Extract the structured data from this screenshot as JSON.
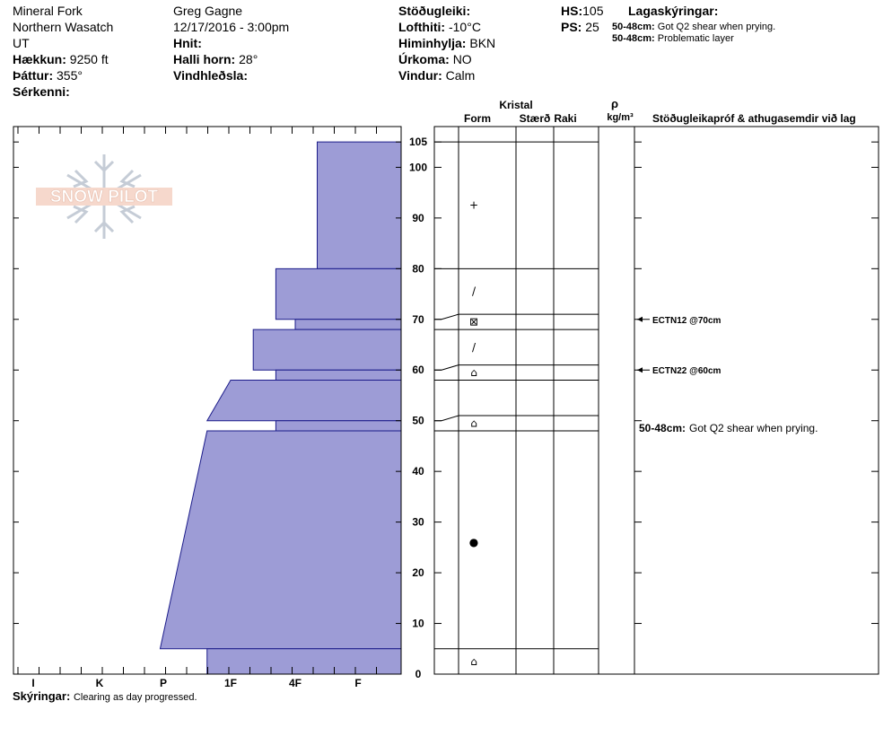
{
  "header": {
    "location": "Mineral Fork",
    "range": "Northern Wasatch",
    "state": "UT",
    "elevation_label": "Hækkun:",
    "elevation_value": "9250 ft",
    "aspect_label": "Þáttur:",
    "aspect_value": "355°",
    "features_label": "Sérkenni:",
    "observer": "Greg Gagne",
    "datetime": "12/17/2016 - 3:00pm",
    "coords_label": "Hnit:",
    "slope_label": "Halli horn:",
    "slope_value": "28°",
    "wind_loading_label": "Vindhleðsla:",
    "stability_label": "Stöðugleiki:",
    "air_temp_label": "Lofthiti:",
    "air_temp_value": "-10°C",
    "sky_label": "Himinhylja:",
    "sky_value": "BKN",
    "precip_label": "Úrkoma:",
    "precip_value": "NO",
    "wind_label": "Vindur:",
    "wind_value": "Calm",
    "hs_label": "HS:",
    "hs_value": "105",
    "ps_label": "PS:",
    "ps_value": "25",
    "layers_label": "Lagaskýringar:",
    "layer_notes": [
      {
        "depth": "50-48cm:",
        "text": "Got Q2 shear when prying."
      },
      {
        "depth": "50-48cm:",
        "text": "Problematic layer"
      }
    ]
  },
  "logo": {
    "text": "SNOW PILOT"
  },
  "columns": {
    "crystal": "Kristal",
    "form": "Form",
    "size": "Stærð",
    "moisture": "Raki",
    "rho": "ρ",
    "density_unit": "kg/m³",
    "comments": "Stöðugleikapróf & athugasemdir við lag"
  },
  "chart_data": {
    "type": "snow-profile",
    "hardness_scale": [
      "I",
      "K",
      "P",
      "1F",
      "4F",
      "F"
    ],
    "depth_axis": {
      "min": 0,
      "max": 105,
      "ticks": [
        0,
        10,
        20,
        30,
        40,
        50,
        60,
        70,
        80,
        90,
        100,
        105
      ]
    },
    "hardness_layers": [
      {
        "top": 105,
        "bottom": 80,
        "hardness_top": 5.35,
        "hardness_bottom": 5.35
      },
      {
        "top": 80,
        "bottom": 70,
        "hardness_top": 4.7,
        "hardness_bottom": 4.7
      },
      {
        "top": 70,
        "bottom": 68,
        "hardness_top": 5.0,
        "hardness_bottom": 5.0
      },
      {
        "top": 68,
        "bottom": 60,
        "hardness_top": 4.35,
        "hardness_bottom": 4.35
      },
      {
        "top": 60,
        "bottom": 58,
        "hardness_top": 4.7,
        "hardness_bottom": 4.7
      },
      {
        "top": 58,
        "bottom": 50,
        "hardness_top": 4.0,
        "hardness_bottom": 3.65
      },
      {
        "top": 50,
        "bottom": 48,
        "hardness_top": 4.7,
        "hardness_bottom": 4.7
      },
      {
        "top": 48,
        "bottom": 5,
        "hardness_top": 3.65,
        "hardness_bottom": 2.95
      },
      {
        "top": 5,
        "bottom": 0,
        "hardness_top": 3.65,
        "hardness_bottom": 3.65
      }
    ],
    "layer_boundaries": [
      105,
      80,
      71,
      68,
      61,
      58,
      51,
      48,
      5
    ],
    "grain_forms": [
      {
        "depth": 92.5,
        "symbol": "+"
      },
      {
        "depth": 75.5,
        "symbol": "/"
      },
      {
        "depth": 69.5,
        "symbol": "⊠"
      },
      {
        "depth": 64.5,
        "symbol": "/"
      },
      {
        "depth": 59.5,
        "symbol": "⌂"
      },
      {
        "depth": 49.5,
        "symbol": "⌂"
      },
      {
        "depth": 26.0,
        "symbol": "●"
      },
      {
        "depth": 2.5,
        "symbol": "⌂"
      }
    ],
    "stability_tests": [
      {
        "depth": 70,
        "label": "ECTN12 @70cm"
      },
      {
        "depth": 60,
        "label": "ECTN22 @60cm"
      }
    ],
    "layer_comment": {
      "depth": 48.5,
      "range": "50-48cm:",
      "text": "Got Q2 shear when prying."
    }
  },
  "footer": {
    "label": "Skýringar:",
    "text": "Clearing as day progressed."
  }
}
